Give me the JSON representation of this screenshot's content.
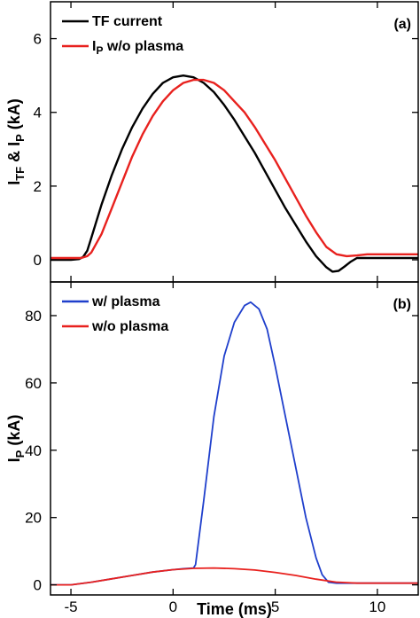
{
  "chart_data": [
    {
      "type": "line",
      "panel_label": "(a)",
      "ylabel_parts": [
        "I",
        "TF",
        " & I",
        "P",
        " (kA)"
      ],
      "xlim": [
        -6,
        12
      ],
      "ylim": [
        -0.6,
        7.0
      ],
      "yticks": [
        "0",
        "2",
        "4",
        "6"
      ],
      "ytick_values": [
        0,
        2,
        4,
        6
      ],
      "legend_position": "top-left",
      "series": [
        {
          "name": "TF current",
          "color": "#000000",
          "x": [
            -6,
            -5,
            -4.6,
            -4.4,
            -4.2,
            -4.0,
            -3.5,
            -3.0,
            -2.5,
            -2.0,
            -1.5,
            -1.0,
            -0.5,
            0.0,
            0.5,
            1.0,
            1.5,
            2.0,
            2.5,
            3.0,
            3.5,
            4.0,
            4.5,
            5.0,
            5.5,
            6.0,
            6.5,
            7.0,
            7.5,
            7.8,
            8.1,
            8.4,
            8.7,
            9.0,
            9.5,
            10,
            11,
            12
          ],
          "y": [
            0.0,
            0.0,
            0.02,
            0.08,
            0.25,
            0.6,
            1.5,
            2.3,
            3.0,
            3.6,
            4.1,
            4.5,
            4.8,
            4.95,
            5.0,
            4.95,
            4.8,
            4.55,
            4.2,
            3.8,
            3.35,
            2.9,
            2.4,
            1.9,
            1.4,
            0.95,
            0.5,
            0.1,
            -0.2,
            -0.32,
            -0.3,
            -0.18,
            -0.05,
            0.05,
            0.05,
            0.05,
            0.05,
            0.05
          ]
        },
        {
          "name_main": "I",
          "name_sub": "P",
          "name_rest": " w/o plasma",
          "color": "#e8211e",
          "x": [
            -6,
            -5,
            -4.5,
            -4.2,
            -4.0,
            -3.5,
            -3.0,
            -2.5,
            -2.0,
            -1.5,
            -1.0,
            -0.5,
            0.0,
            0.5,
            1.0,
            1.5,
            2.0,
            2.5,
            3.0,
            3.5,
            4.0,
            4.5,
            5.0,
            5.5,
            6.0,
            6.5,
            7.0,
            7.5,
            8.0,
            8.5,
            9.0,
            9.5,
            10,
            11,
            12
          ],
          "y": [
            0.05,
            0.05,
            0.05,
            0.1,
            0.2,
            0.7,
            1.4,
            2.1,
            2.8,
            3.4,
            3.9,
            4.3,
            4.6,
            4.8,
            4.88,
            4.88,
            4.8,
            4.6,
            4.3,
            4.0,
            3.6,
            3.15,
            2.7,
            2.2,
            1.7,
            1.2,
            0.75,
            0.35,
            0.15,
            0.1,
            0.12,
            0.15,
            0.15,
            0.15,
            0.15
          ]
        }
      ]
    },
    {
      "type": "line",
      "panel_label": "(b)",
      "ylabel_parts": [
        "I",
        "P",
        " (kA)"
      ],
      "xlabel": "Time (ms)",
      "xlim": [
        -6,
        12
      ],
      "ylim": [
        -3,
        90
      ],
      "yticks": [
        "0",
        "20",
        "40",
        "60",
        "80"
      ],
      "ytick_values": [
        0,
        20,
        40,
        60,
        80
      ],
      "xticks": [
        "-5",
        "0",
        "5",
        "10"
      ],
      "xtick_values": [
        -5,
        0,
        5,
        10
      ],
      "legend_position": "top-left",
      "series": [
        {
          "name": "w/ plasma",
          "color": "#1f3fcc",
          "x": [
            -6,
            -5,
            -4,
            -3,
            -2,
            -1,
            0,
            0.5,
            1.0,
            1.1,
            1.5,
            2.0,
            2.5,
            3.0,
            3.5,
            3.8,
            4.2,
            4.6,
            5.0,
            5.5,
            6.0,
            6.5,
            7.0,
            7.3,
            7.6,
            8.0,
            9,
            10,
            11,
            12
          ],
          "y": [
            0,
            0,
            0.8,
            1.8,
            2.8,
            3.8,
            4.5,
            4.8,
            5.0,
            6.0,
            25,
            50,
            68,
            78,
            83,
            84,
            82,
            76,
            65,
            50,
            35,
            20,
            8,
            3,
            0.8,
            0.5,
            0.5,
            0.5,
            0.5,
            0.5
          ]
        },
        {
          "name": "w/o plasma",
          "color": "#e8211e",
          "x": [
            -6,
            -5,
            -4,
            -3,
            -2,
            -1,
            0,
            1,
            2,
            3,
            4,
            5,
            6,
            7,
            8,
            9,
            10,
            11,
            12
          ],
          "y": [
            0,
            0,
            0.8,
            1.8,
            2.8,
            3.8,
            4.5,
            4.9,
            5.0,
            4.8,
            4.4,
            3.7,
            2.8,
            1.7,
            0.8,
            0.5,
            0.5,
            0.5,
            0.5
          ]
        }
      ]
    }
  ]
}
